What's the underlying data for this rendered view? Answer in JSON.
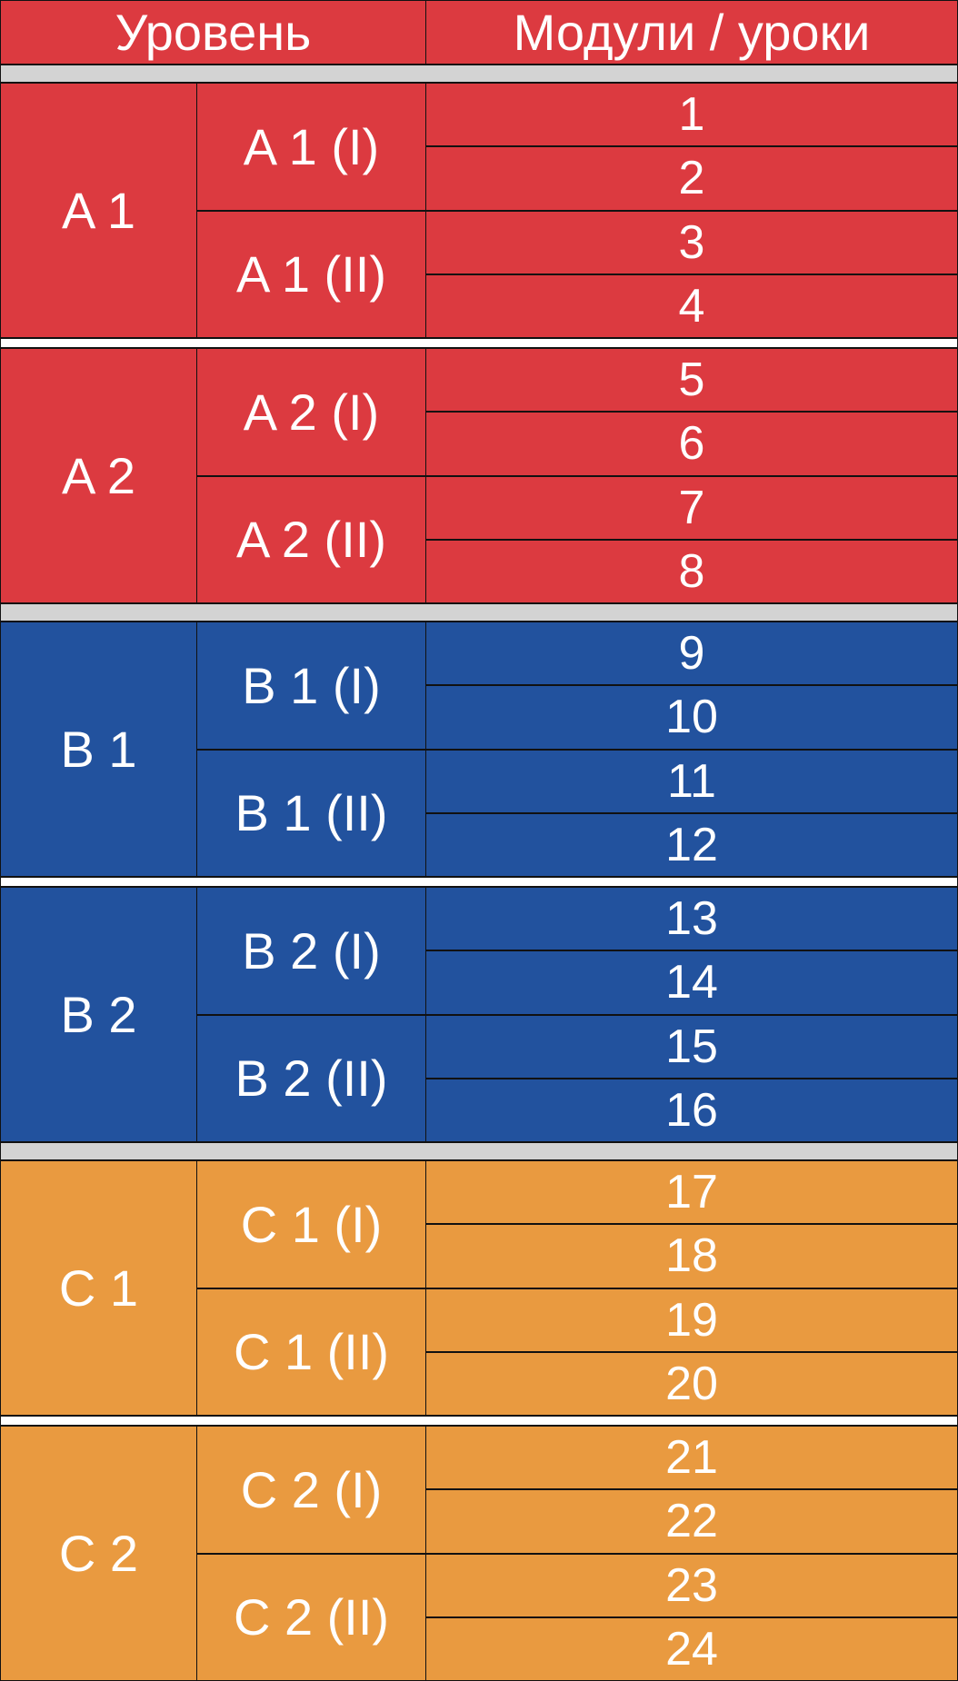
{
  "header": {
    "level": "Уровень",
    "modules": "Модули / уроки"
  },
  "levels": [
    {
      "name": "A 1",
      "sublevels": [
        {
          "name": "A 1 (I)",
          "modules": [
            1,
            2
          ]
        },
        {
          "name": "A 1 (II)",
          "modules": [
            3,
            4
          ]
        }
      ]
    },
    {
      "name": "A 2",
      "sublevels": [
        {
          "name": "A 2 (I)",
          "modules": [
            5,
            6
          ]
        },
        {
          "name": "A 2 (II)",
          "modules": [
            7,
            8
          ]
        }
      ]
    },
    {
      "name": "B 1",
      "sublevels": [
        {
          "name": "B 1 (I)",
          "modules": [
            9,
            10
          ]
        },
        {
          "name": "B 1 (II)",
          "modules": [
            11,
            12
          ]
        }
      ]
    },
    {
      "name": "B 2",
      "sublevels": [
        {
          "name": "B 2 (I)",
          "modules": [
            13,
            14
          ]
        },
        {
          "name": "B 2 (II)",
          "modules": [
            15,
            16
          ]
        }
      ]
    },
    {
      "name": "C 1",
      "sublevels": [
        {
          "name": "C 1 (I)",
          "modules": [
            17,
            18
          ]
        },
        {
          "name": "C 1 (II)",
          "modules": [
            19,
            20
          ]
        }
      ]
    },
    {
      "name": "C 2",
      "sublevels": [
        {
          "name": "C 2 (I)",
          "modules": [
            21,
            22
          ]
        },
        {
          "name": "C 2 (II)",
          "modules": [
            23,
            24
          ]
        }
      ]
    }
  ]
}
